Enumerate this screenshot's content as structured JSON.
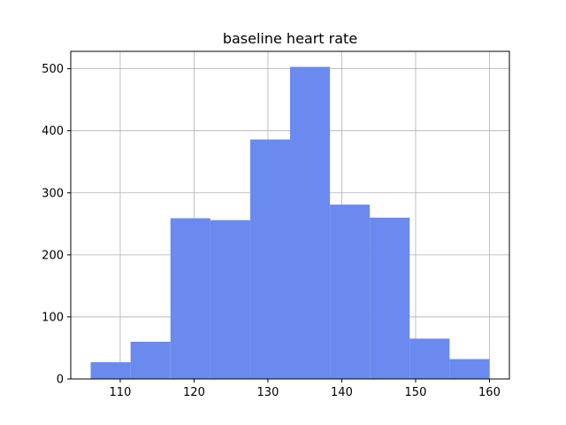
{
  "chart_data": {
    "type": "bar",
    "subtype": "histogram",
    "title": "baseline heart rate",
    "xlabel": "",
    "ylabel": "",
    "bins": [
      {
        "x0": 106.0,
        "x1": 111.4,
        "count": 27
      },
      {
        "x0": 111.4,
        "x1": 116.8,
        "count": 60
      },
      {
        "x0": 116.8,
        "x1": 122.2,
        "count": 259
      },
      {
        "x0": 122.2,
        "x1": 127.6,
        "count": 256
      },
      {
        "x0": 127.6,
        "x1": 133.0,
        "count": 386
      },
      {
        "x0": 133.0,
        "x1": 138.4,
        "count": 503
      },
      {
        "x0": 138.4,
        "x1": 143.8,
        "count": 281
      },
      {
        "x0": 143.8,
        "x1": 149.2,
        "count": 260
      },
      {
        "x0": 149.2,
        "x1": 154.6,
        "count": 65
      },
      {
        "x0": 154.6,
        "x1": 160.0,
        "count": 32
      }
    ],
    "xlim": [
      103.3,
      162.7
    ],
    "ylim": [
      0,
      528
    ],
    "xticks": [
      110,
      120,
      130,
      140,
      150,
      160
    ],
    "yticks": [
      0,
      100,
      200,
      300,
      400,
      500
    ],
    "grid": true,
    "bar_color": "#6a8aef",
    "grid_color": "#b0b0b0"
  }
}
